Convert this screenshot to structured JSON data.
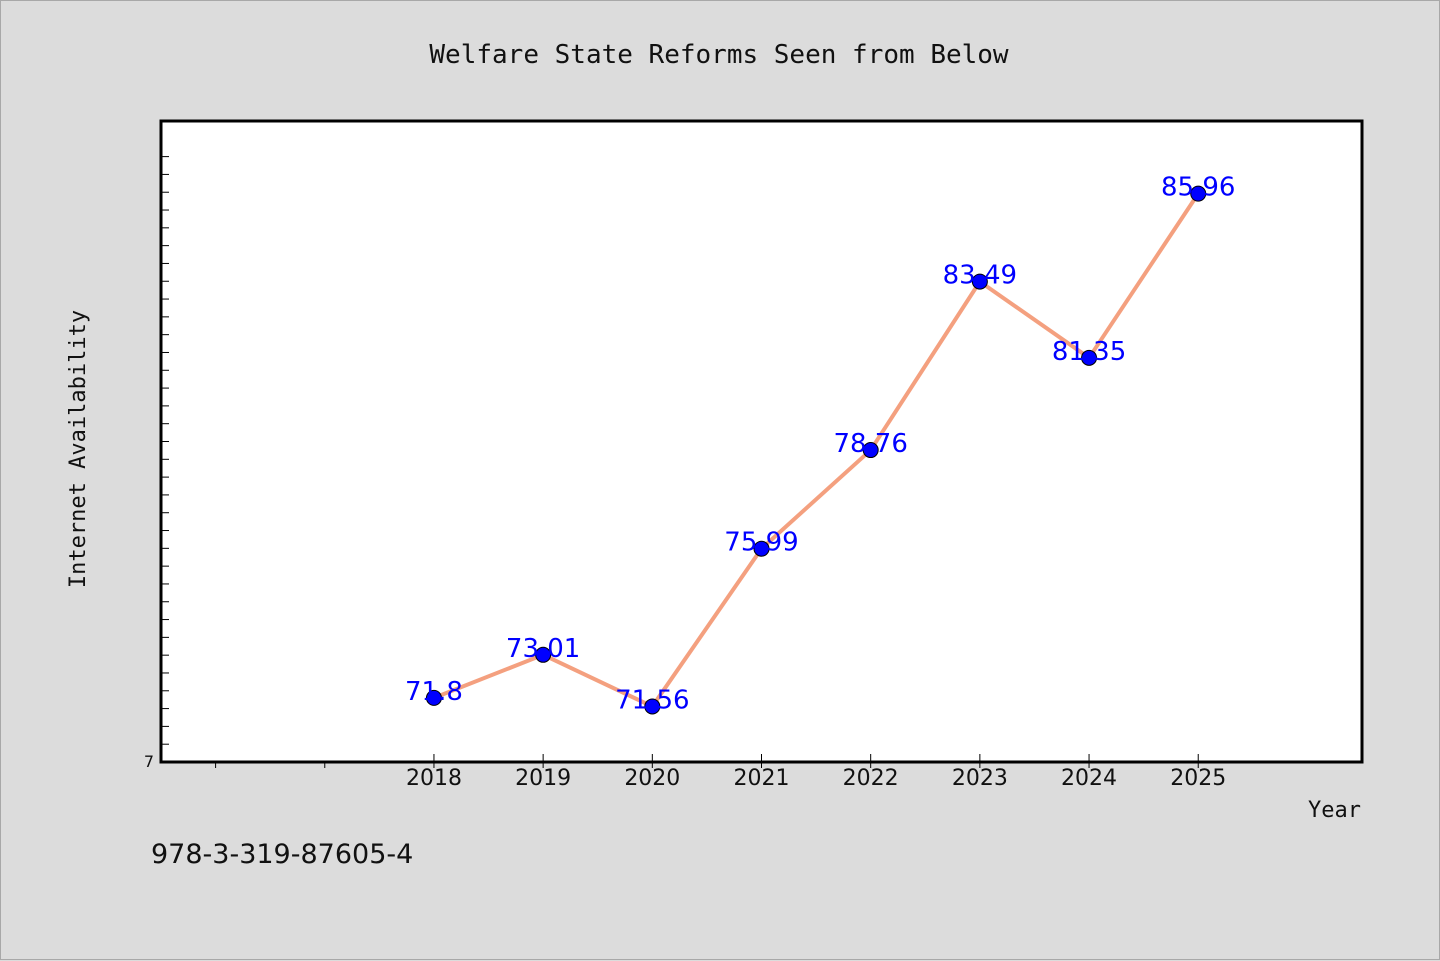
{
  "footer_text": "978-3-319-87605-4",
  "colors": {
    "background": "#dcdcdc",
    "plot_background": "#ffffff",
    "line": "#f4a07f",
    "marker": "#0000ff",
    "data_label": "#0000ff"
  },
  "chart_data": {
    "type": "line",
    "title": "Welfare State Reforms Seen from Below",
    "xlabel": "Year",
    "ylabel": "Internet Availability",
    "x": [
      "2018",
      "2019",
      "2020",
      "2021",
      "2022",
      "2023",
      "2024",
      "2025"
    ],
    "series": [
      {
        "values": [
          71.8,
          73.01,
          71.56,
          75.99,
          78.76,
          83.49,
          81.35,
          85.96
        ],
        "labels": [
          "71.8",
          "73.01",
          "71.56",
          "75.99",
          "78.76",
          "83.49",
          "81.35",
          "85.96"
        ]
      }
    ],
    "xlim": [
      2015.5,
      2026.5
    ],
    "ylim": [
      70,
      88
    ],
    "y_tick_labels": [
      "7"
    ],
    "grid": false,
    "legend": "none"
  }
}
